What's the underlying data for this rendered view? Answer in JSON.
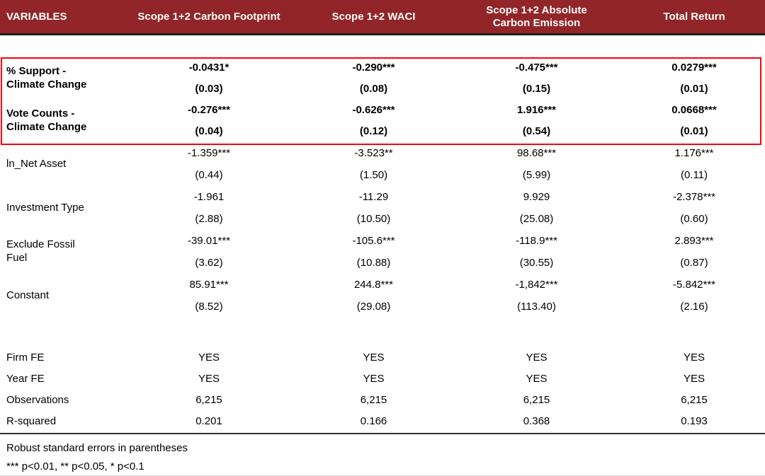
{
  "colors": {
    "header_bg": "#922528",
    "header_text": "#ffffff",
    "highlight_border": "#fe0100",
    "rule_dark": "#1c1c1c"
  },
  "table": {
    "header": {
      "col0": "VARIABLES",
      "col1": "Scope 1+2 Carbon Footprint",
      "col2": "Scope 1+2 WACI",
      "col3_line1": "Scope 1+2 Absolute",
      "col3_line2": "Carbon Emission",
      "col4": "Total Return"
    },
    "highlighted": [
      {
        "label1": "% Support -",
        "label2": "Climate Change",
        "coef": [
          "-0.0431*",
          "-0.290***",
          "-0.475***",
          "0.0279***"
        ],
        "se": [
          "(0.03)",
          "(0.08)",
          "(0.15)",
          "(0.01)"
        ]
      },
      {
        "label1": "Vote Counts -",
        "label2": "Climate Change",
        "coef": [
          "-0.276***",
          "-0.626***",
          "1.916***",
          "0.0668***"
        ],
        "se": [
          "(0.04)",
          "(0.12)",
          "(0.54)",
          "(0.01)"
        ]
      }
    ],
    "controls": [
      {
        "label": "ln_Net Asset",
        "coef": [
          "-1.359***",
          "-3.523**",
          "98.68***",
          "1.176***"
        ],
        "se": [
          "(0.44)",
          "(1.50)",
          "(5.99)",
          "(0.11)"
        ]
      },
      {
        "label": "Investment Type",
        "coef": [
          "-1.961",
          "-11.29",
          "9.929",
          "-2.378***"
        ],
        "se": [
          "(2.88)",
          "(10.50)",
          "(25.08)",
          "(0.60)"
        ]
      },
      {
        "label": "Exclude Fossil Fuel",
        "coef": [
          "-39.01***",
          "-105.6***",
          "-118.9***",
          "2.893***"
        ],
        "se": [
          "(3.62)",
          "(10.88)",
          "(30.55)",
          "(0.87)"
        ]
      },
      {
        "label": "Constant",
        "coef": [
          "85.91***",
          "244.8***",
          "-1,842***",
          "-5.842***"
        ],
        "se": [
          "(8.52)",
          "(29.08)",
          "(113.40)",
          "(2.16)"
        ]
      }
    ],
    "summary": [
      {
        "label": "Firm FE",
        "values": [
          "YES",
          "YES",
          "YES",
          "YES"
        ]
      },
      {
        "label": "Year FE",
        "values": [
          "YES",
          "YES",
          "YES",
          "YES"
        ]
      },
      {
        "label": "Observations",
        "values": [
          "6,215",
          "6,215",
          "6,215",
          "6,215"
        ]
      },
      {
        "label": "R-squared",
        "values": [
          "0.201",
          "0.166",
          "0.368",
          "0.193"
        ]
      }
    ],
    "notes": [
      "Robust standard errors in parentheses",
      "*** p<0.01, ** p<0.05, * p<0.1"
    ]
  }
}
